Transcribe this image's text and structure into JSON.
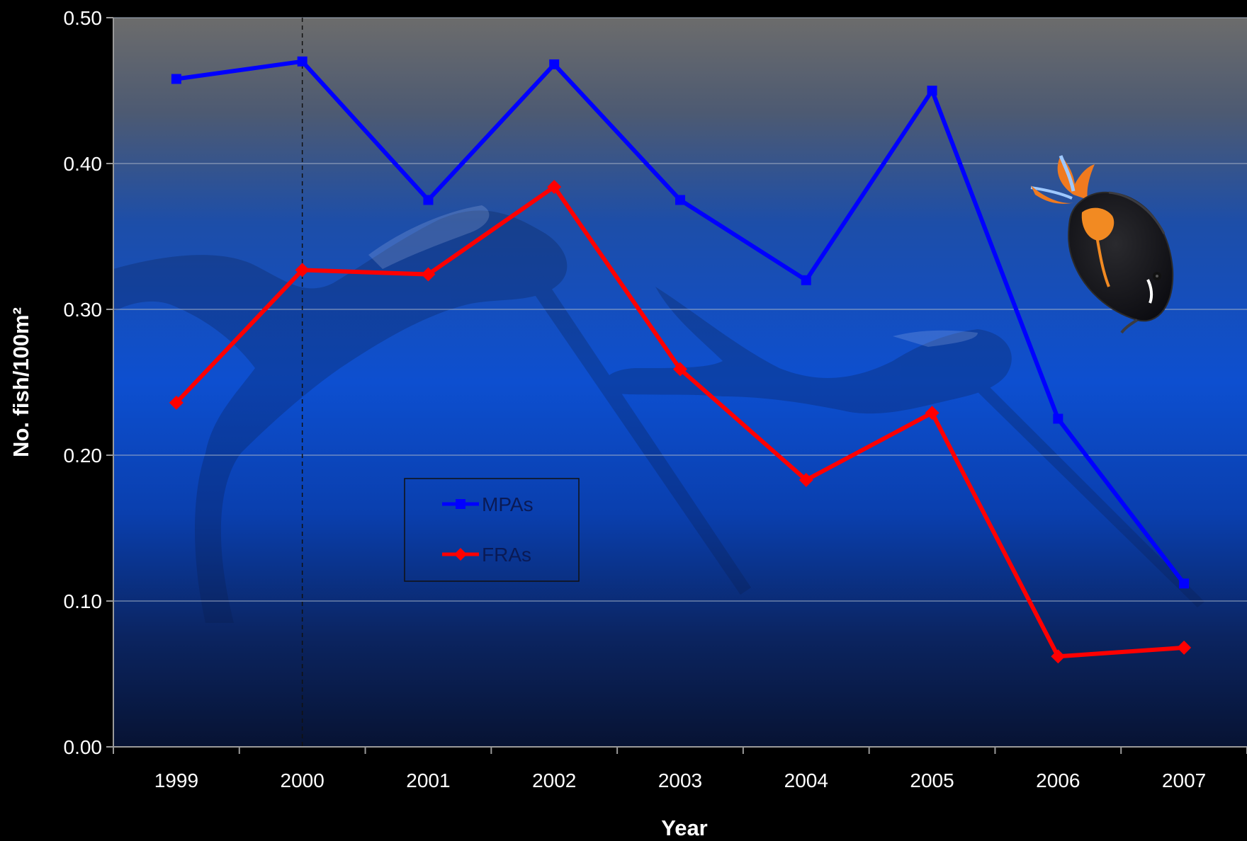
{
  "chart_data": {
    "type": "line",
    "title": "",
    "xlabel": "Year",
    "ylabel": "No. fish/100m²",
    "categories": [
      "1999",
      "2000",
      "2001",
      "2002",
      "2003",
      "2004",
      "2005",
      "2006",
      "2007"
    ],
    "yticks": [
      "0.00",
      "0.10",
      "0.20",
      "0.30",
      "0.40",
      "0.50"
    ],
    "ylim": [
      0,
      0.5
    ],
    "grid": true,
    "reference_line_x": "2000",
    "legend_position": "center-left",
    "series": [
      {
        "name": "MPAs",
        "color": "#0000ff",
        "marker": "square",
        "values": [
          0.458,
          0.47,
          0.375,
          0.468,
          0.375,
          0.32,
          0.45,
          0.225,
          0.112
        ]
      },
      {
        "name": "FRAs",
        "color": "#ff0000",
        "marker": "diamond",
        "values": [
          0.236,
          0.327,
          0.324,
          0.384,
          0.259,
          0.183,
          0.229,
          0.062,
          0.068
        ]
      }
    ]
  },
  "decorations": {
    "background_photo": "underwater-spearfishers-photo",
    "fish_illustration": "achilles-tang-fish"
  }
}
